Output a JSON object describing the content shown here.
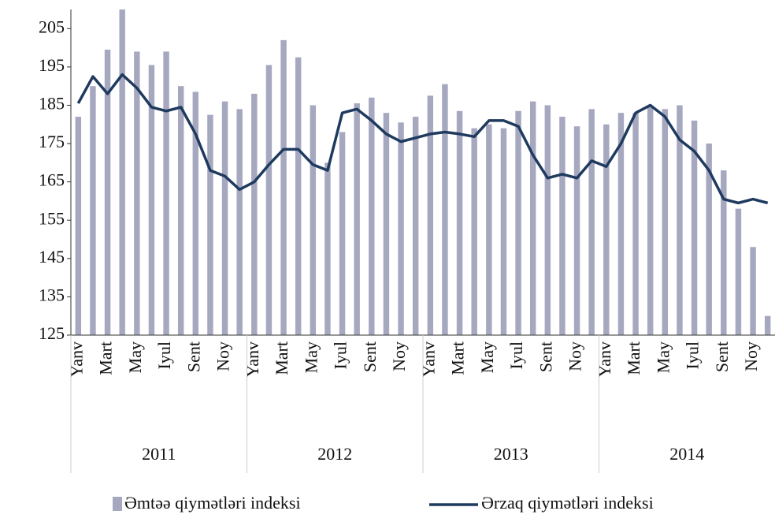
{
  "chart_data": {
    "type": "bar_line",
    "categories": [
      "Yanv",
      null,
      "Mart",
      null,
      "May",
      null,
      "Iyul",
      null,
      "Sent",
      null,
      "Noy",
      null,
      "Yanv",
      null,
      "Mart",
      null,
      "May",
      null,
      "Iyul",
      null,
      "Sent",
      null,
      "Noy",
      null,
      "Yanv",
      null,
      "Mart",
      null,
      "May",
      null,
      "Iyul",
      null,
      "Sent",
      null,
      "Noy",
      null,
      "Yanv",
      null,
      "Mart",
      null,
      "May",
      null,
      "Iyul",
      null,
      "Sent",
      null,
      "Noy",
      null
    ],
    "groups": [
      "2011",
      "2012",
      "2013",
      "2014"
    ],
    "series": [
      {
        "name": "Əmtəə qiymətləri indeksi",
        "type": "bar",
        "color": "#a6a8c0",
        "values": [
          182,
          190,
          199.5,
          210,
          199,
          195.5,
          199,
          190,
          188.5,
          182.5,
          186,
          184,
          188,
          195.5,
          202,
          197.5,
          185,
          170,
          178,
          185.5,
          187,
          183,
          180.5,
          182,
          187.5,
          190.5,
          183.5,
          179,
          180,
          179,
          183.5,
          186,
          185,
          182,
          179.5,
          184,
          180,
          183,
          183,
          184.5,
          184,
          185,
          181,
          175,
          168,
          158,
          148,
          130
        ]
      },
      {
        "name": "Ərzaq qiymətləri indeksi",
        "type": "line",
        "color": "#1f3a5f",
        "values": [
          185.5,
          192.5,
          188,
          193,
          189.5,
          184.5,
          183.5,
          184.5,
          177.5,
          168,
          166.5,
          163,
          165,
          169.5,
          173.5,
          173.5,
          169.5,
          168,
          183,
          184,
          181,
          177.5,
          175.5,
          176.5,
          177.5,
          178,
          177.5,
          176.8,
          181,
          181,
          179.5,
          172,
          166,
          167,
          166,
          170.5,
          169,
          175,
          183,
          185,
          182,
          176,
          173,
          168,
          160.5,
          159.5,
          160.5,
          159.5
        ]
      }
    ],
    "ylim": [
      125,
      210
    ],
    "yticks": [
      125,
      135,
      145,
      155,
      165,
      175,
      185,
      195,
      205
    ],
    "grid": false
  }
}
